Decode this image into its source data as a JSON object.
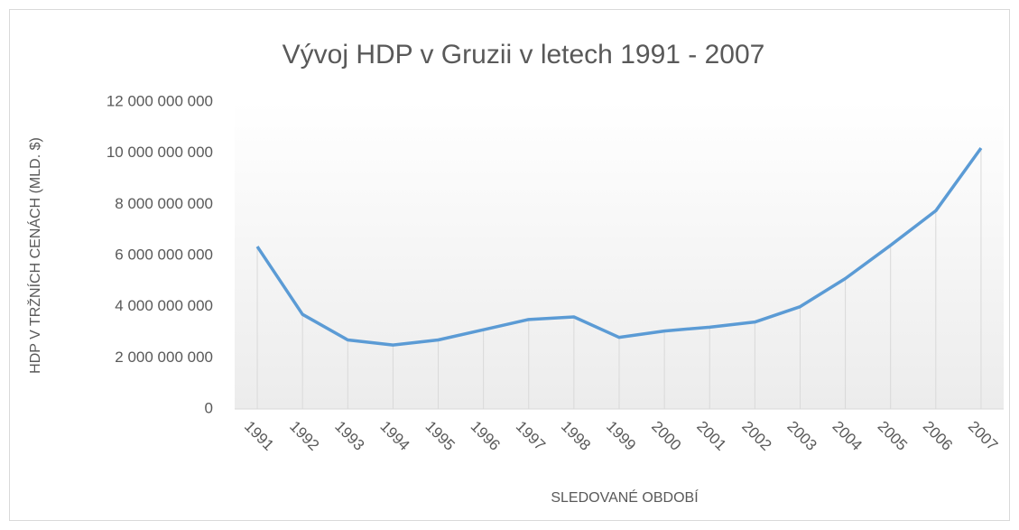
{
  "chart_data": {
    "type": "line",
    "title": "Vývoj HDP v Gruzii v letech 1991 - 2007",
    "x_label": "SLEDOVANÉ OBDOBÍ",
    "y_label": "HDP V  TRŽNÍCH CENÁCH (MLD. $)",
    "categories": [
      "1991",
      "1992",
      "1993",
      "1994",
      "1995",
      "1996",
      "1997",
      "1998",
      "1999",
      "2000",
      "2001",
      "2002",
      "2003",
      "2004",
      "2005",
      "2006",
      "2007"
    ],
    "series": [
      {
        "name": "HDP",
        "color": "#5b9bd5",
        "values": [
          6350000000,
          3700000000,
          2700000000,
          2500000000,
          2700000000,
          3100000000,
          3500000000,
          3600000000,
          2800000000,
          3050000000,
          3200000000,
          3400000000,
          4000000000,
          5100000000,
          6400000000,
          7750000000,
          10200000000
        ]
      }
    ],
    "ylim": [
      0,
      12000000000
    ],
    "yticks": [
      0,
      {
        "value": 2000000000,
        "label": "2 000 000 000"
      },
      {
        "value": 4000000000,
        "label": "4 000 000 000"
      },
      {
        "value": 6000000000,
        "label": "6 000 000 000"
      },
      {
        "value": 8000000000,
        "label": "8 000 000 000"
      },
      {
        "value": 10000000000,
        "label": "10 000 000 000"
      },
      {
        "value": 12000000000,
        "label": "12 000 000 000"
      }
    ],
    "drop_lines": true
  }
}
